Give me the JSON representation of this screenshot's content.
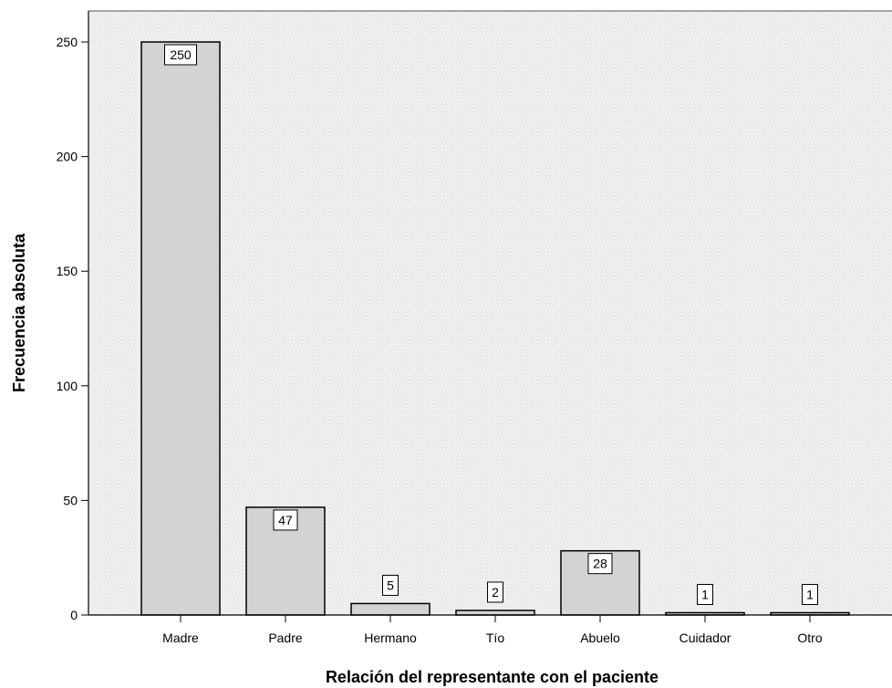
{
  "chart_data": {
    "type": "bar",
    "title": "",
    "xlabel": "Relación del representante con el paciente",
    "ylabel": "Frecuencia absoluta",
    "categories": [
      "Madre",
      "Padre",
      "Hermano",
      "Tío",
      "Abuelo",
      "Cuidador",
      "Otro"
    ],
    "values": [
      250,
      47,
      5,
      2,
      28,
      1,
      1
    ],
    "data_labels": [
      "250",
      "47",
      "5",
      "2",
      "28",
      "1",
      "1"
    ],
    "ylim": [
      0,
      265
    ],
    "yticks": [
      0,
      50,
      100,
      150,
      200,
      250
    ],
    "ytick_labels": [
      "0",
      "50",
      "100",
      "150",
      "200",
      "250"
    ],
    "grid": false,
    "legend": "none",
    "colors": {
      "bar_fill": "#d3d3d3",
      "bar_stroke": "#000000",
      "plot_background": "#efefef",
      "label_box_fill": "#ffffff"
    }
  }
}
